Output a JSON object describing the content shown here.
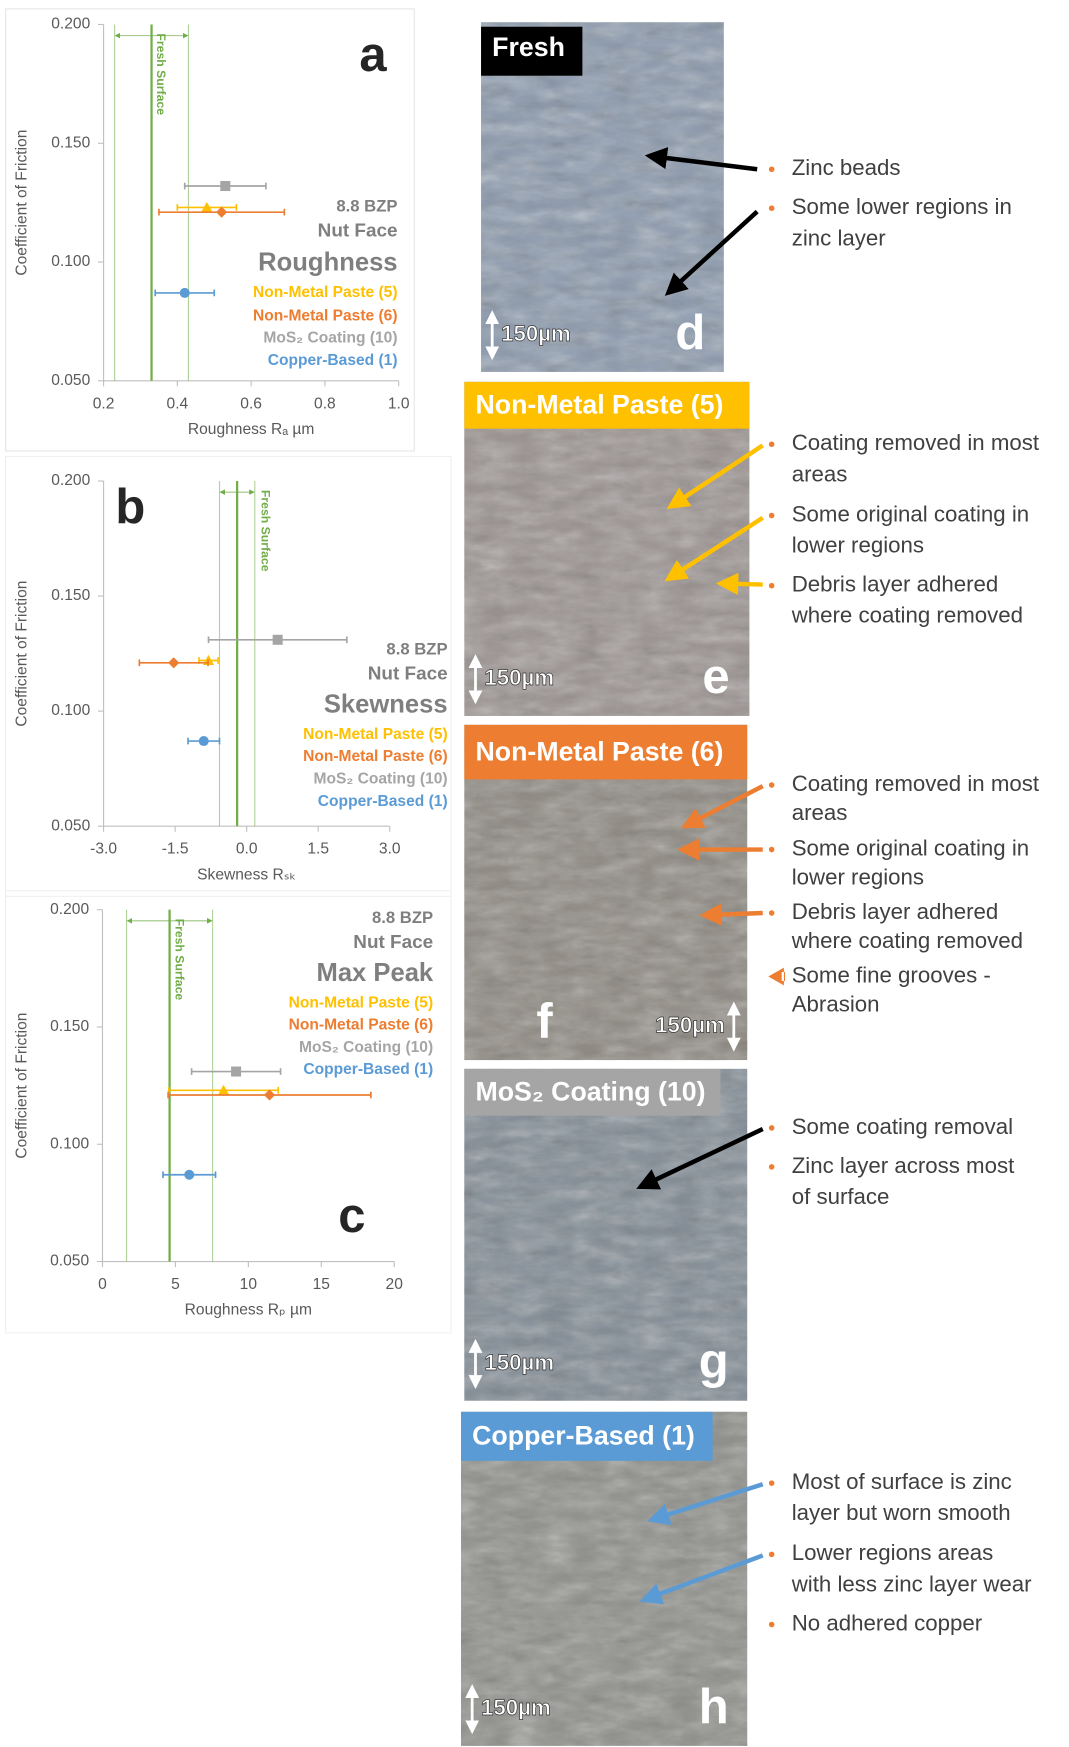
{
  "chart_data": [
    {
      "type": "scatter",
      "panel": "a",
      "title": "8.8 BZP",
      "subtitle": "Nut Face",
      "heading": "Roughness",
      "x_label": "Roughness Rₐ µm",
      "y_label": "Coefficient of Friction",
      "xlim": [
        0.2,
        1.0
      ],
      "xticks": [
        0.2,
        0.4,
        0.6,
        0.8,
        {
          "value": 1.0,
          "label": "1.0"
        }
      ],
      "ylim": [
        0.05,
        0.2
      ],
      "yticks": [
        {
          "value": 0.05,
          "label": "0.050"
        },
        {
          "value": 0.1,
          "label": "0.100"
        },
        {
          "value": 0.15,
          "label": "0.150"
        },
        {
          "value": 0.2,
          "label": "0.200"
        }
      ],
      "reference": {
        "label": "Fresh Surface",
        "color": "#70ad47",
        "value": 0.33,
        "error": 0.1
      },
      "series": [
        {
          "name": "Non-Metal Paste (5)",
          "color": "#ffc000",
          "marker": "triangle",
          "x": [
            0.48
          ],
          "values": [
            0.123
          ],
          "xerr": [
            0.08
          ]
        },
        {
          "name": "Non-Metal Paste (6)",
          "color": "#ed7d31",
          "marker": "diamond",
          "x": [
            0.52
          ],
          "values": [
            0.121
          ],
          "xerr": [
            0.17
          ]
        },
        {
          "name": "MoS₂ Coating (10)",
          "color": "#a5a5a5",
          "marker": "square",
          "x": [
            0.53
          ],
          "values": [
            0.132
          ],
          "xerr": [
            0.11
          ]
        },
        {
          "name": "Copper-Based (1)",
          "color": "#5b9bd5",
          "marker": "circle",
          "x": [
            0.42
          ],
          "values": [
            0.087
          ],
          "xerr": [
            0.08
          ]
        }
      ]
    },
    {
      "type": "scatter",
      "panel": "b",
      "title": "8.8 BZP",
      "subtitle": "Nut Face",
      "heading": "Skewness",
      "x_label": "Skewness Rₛₖ",
      "y_label": "Coefficient of Friction",
      "xlim": [
        -3,
        3
      ],
      "xticks": [
        {
          "value": -3,
          "label": "-3.0"
        },
        -1.5,
        {
          "value": 0,
          "label": "0.0"
        },
        1.5,
        {
          "value": 3,
          "label": "3.0"
        }
      ],
      "ylim": [
        0.05,
        0.2
      ],
      "yticks": [
        {
          "value": 0.05,
          "label": "0.050"
        },
        {
          "value": 0.1,
          "label": "0.100"
        },
        {
          "value": 0.15,
          "label": "0.150"
        },
        {
          "value": 0.2,
          "label": "0.200"
        }
      ],
      "reference": {
        "label": "Fresh Surface",
        "color": "#70ad47",
        "value": -0.2,
        "error": 0.37
      },
      "series": [
        {
          "name": "Non-Metal Paste (5)",
          "color": "#ffc000",
          "marker": "triangle",
          "x": [
            -0.8
          ],
          "values": [
            0.122
          ],
          "xerr": [
            0.2
          ]
        },
        {
          "name": "Non-Metal Paste (6)",
          "color": "#ed7d31",
          "marker": "diamond",
          "x": [
            -1.53
          ],
          "values": [
            0.121
          ],
          "xerr": [
            0.72
          ]
        },
        {
          "name": "MoS₂ Coating (10)",
          "color": "#a5a5a5",
          "marker": "square",
          "x": [
            0.65
          ],
          "values": [
            0.131
          ],
          "xerr": [
            1.45
          ]
        },
        {
          "name": "Copper-Based (1)",
          "color": "#5b9bd5",
          "marker": "circle",
          "x": [
            -0.9
          ],
          "values": [
            0.087
          ],
          "xerr": [
            0.33
          ]
        }
      ]
    },
    {
      "type": "scatter",
      "panel": "c",
      "title": "8.8 BZP",
      "subtitle": "Nut Face",
      "heading": "Max Peak",
      "x_label": "Roughness Rₚ µm",
      "y_label": "Coefficient of Friction",
      "xlim": [
        0,
        20
      ],
      "xticks": [
        0,
        5,
        10,
        15,
        20
      ],
      "ylim": [
        0.05,
        0.2
      ],
      "yticks": [
        {
          "value": 0.05,
          "label": "0.050"
        },
        {
          "value": 0.1,
          "label": "0.100"
        },
        {
          "value": 0.15,
          "label": "0.150"
        },
        {
          "value": 0.2,
          "label": "0.200"
        }
      ],
      "reference": {
        "label": "Fresh Surface",
        "color": "#70ad47",
        "value": 4.6,
        "error": 2.95
      },
      "series": [
        {
          "name": "Non-Metal Paste (5)",
          "color": "#ffc000",
          "marker": "triangle",
          "x": [
            8.3
          ],
          "values": [
            0.123
          ],
          "xerr": [
            3.75
          ]
        },
        {
          "name": "Non-Metal Paste (6)",
          "color": "#ed7d31",
          "marker": "diamond",
          "x": [
            11.45
          ],
          "values": [
            0.121
          ],
          "xerr": [
            6.95
          ]
        },
        {
          "name": "MoS₂ Coating (10)",
          "color": "#a5a5a5",
          "marker": "square",
          "x": [
            9.16
          ],
          "values": [
            0.131
          ],
          "xerr": [
            3.05
          ]
        },
        {
          "name": "Copper-Based (1)",
          "color": "#5b9bd5",
          "marker": "circle",
          "x": [
            5.95
          ],
          "values": [
            0.087
          ],
          "xerr": [
            1.8
          ]
        }
      ]
    }
  ],
  "micrographs": [
    {
      "label": "Fresh",
      "label_color": "#000000",
      "panel": "d",
      "scale": "150µm",
      "notes": [
        [
          "Zinc beads"
        ],
        [
          "Some lower regions in",
          "zinc layer"
        ]
      ]
    },
    {
      "label": "Non-Metal Paste (5)",
      "label_color": "#ffc000",
      "panel": "e",
      "scale": "150µm",
      "notes": [
        [
          "Coating removed in most",
          "areas"
        ],
        [
          "Some original coating in",
          "lower regions"
        ],
        [
          "Debris layer adhered",
          "where coating removed"
        ]
      ]
    },
    {
      "label": "Non-Metal Paste (6)",
      "label_color": "#ed7d31",
      "panel": "f",
      "scale": "150µm",
      "notes": [
        [
          "Coating removed in most",
          "areas"
        ],
        [
          "Some original coating in",
          "lower regions"
        ],
        [
          "Debris layer adhered",
          "where coating removed"
        ],
        [
          "Some fine grooves -",
          "Abrasion"
        ]
      ]
    },
    {
      "label": "MoS₂ Coating (10)",
      "label_color": "#a5a5a5",
      "panel": "g",
      "scale": "150µm",
      "notes": [
        [
          "Some coating removal"
        ],
        [
          "Zinc layer across most",
          "of surface"
        ]
      ]
    },
    {
      "label": "Copper-Based (1)",
      "label_color": "#5b9bd5",
      "panel": "h",
      "scale": "150µm",
      "notes": [
        [
          "Most of surface is zinc",
          "layer but worn smooth"
        ],
        [
          "Lower regions areas",
          "with less zinc layer wear"
        ],
        [
          "No adhered copper"
        ]
      ]
    }
  ]
}
